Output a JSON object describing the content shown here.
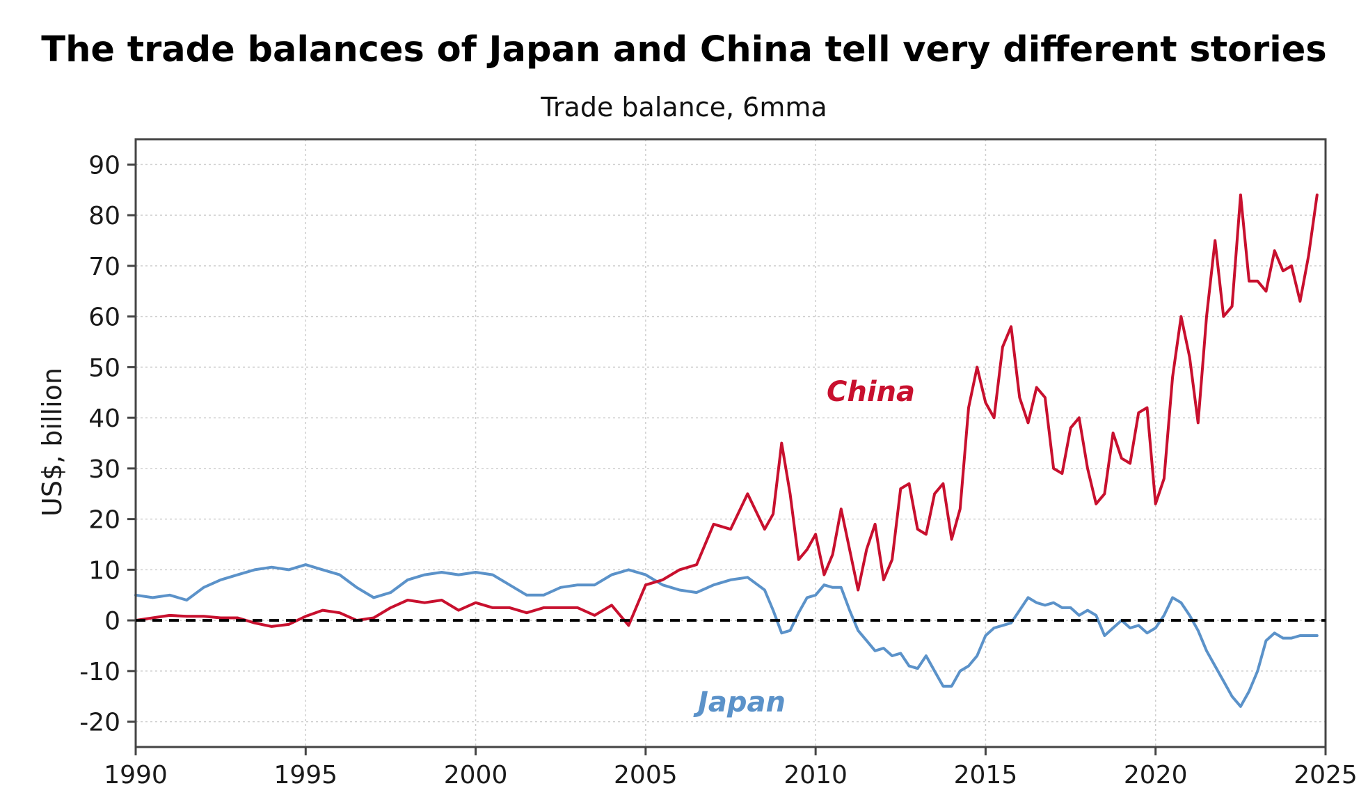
{
  "chart_data": {
    "type": "line",
    "title": "The trade balances of Japan and China tell very different stories",
    "subtitle": "Trade balance, 6mma",
    "xlabel": "",
    "ylabel": "US$, billion",
    "xlim": [
      1990,
      2025
    ],
    "ylim": [
      -25,
      95
    ],
    "xticks": [
      1990,
      1995,
      2000,
      2005,
      2010,
      2015,
      2020,
      2025
    ],
    "yticks": [
      -20,
      -10,
      0,
      10,
      20,
      30,
      40,
      50,
      60,
      70,
      80,
      90
    ],
    "grid": true,
    "zero_line": "dashed",
    "series": [
      {
        "name": "China",
        "color": "#c8102e",
        "x": [
          1990.0,
          1990.5,
          1991.0,
          1991.5,
          1992.0,
          1992.5,
          1993.0,
          1993.5,
          1994.0,
          1994.5,
          1995.0,
          1995.5,
          1996.0,
          1996.5,
          1997.0,
          1997.5,
          1998.0,
          1998.5,
          1999.0,
          1999.5,
          2000.0,
          2000.5,
          2001.0,
          2001.5,
          2002.0,
          2002.5,
          2003.0,
          2003.5,
          2004.0,
          2004.5,
          2005.0,
          2005.5,
          2006.0,
          2006.5,
          2007.0,
          2007.5,
          2008.0,
          2008.5,
          2008.75,
          2009.0,
          2009.25,
          2009.5,
          2009.75,
          2010.0,
          2010.25,
          2010.5,
          2010.75,
          2011.0,
          2011.25,
          2011.5,
          2011.75,
          2012.0,
          2012.25,
          2012.5,
          2012.75,
          2013.0,
          2013.25,
          2013.5,
          2013.75,
          2014.0,
          2014.25,
          2014.5,
          2014.75,
          2015.0,
          2015.25,
          2015.5,
          2015.75,
          2016.0,
          2016.25,
          2016.5,
          2016.75,
          2017.0,
          2017.25,
          2017.5,
          2017.75,
          2018.0,
          2018.25,
          2018.5,
          2018.75,
          2019.0,
          2019.25,
          2019.5,
          2019.75,
          2020.0,
          2020.25,
          2020.5,
          2020.75,
          2021.0,
          2021.25,
          2021.5,
          2021.75,
          2022.0,
          2022.25,
          2022.5,
          2022.75,
          2023.0,
          2023.25,
          2023.5,
          2023.75,
          2024.0,
          2024.25,
          2024.5,
          2024.75
        ],
        "values": [
          0,
          0.5,
          1,
          0.8,
          0.8,
          0.5,
          0.5,
          -0.5,
          -1.2,
          -0.8,
          0.8,
          2,
          1.5,
          0,
          0.5,
          2.5,
          4,
          3.5,
          4,
          2,
          3.5,
          2.5,
          2.5,
          1.5,
          2.5,
          2.5,
          2.5,
          1,
          3,
          -1,
          7,
          8,
          10,
          11,
          19,
          18,
          25,
          18,
          21,
          35,
          25,
          12,
          14,
          17,
          9,
          13,
          22,
          14,
          6,
          14,
          19,
          8,
          12,
          26,
          27,
          18,
          17,
          25,
          27,
          16,
          22,
          42,
          50,
          43,
          40,
          54,
          58,
          44,
          39,
          46,
          44,
          30,
          29,
          38,
          40,
          30,
          23,
          25,
          37,
          32,
          31,
          41,
          42,
          23,
          28,
          48,
          60,
          52,
          39,
          60,
          75,
          60,
          62,
          84,
          67,
          67,
          65,
          73,
          69,
          70,
          63,
          72,
          84
        ]
      },
      {
        "name": "Japan",
        "color": "#5b92c9",
        "x": [
          1990.0,
          1990.5,
          1991.0,
          1991.5,
          1992.0,
          1992.5,
          1993.0,
          1993.5,
          1994.0,
          1994.5,
          1995.0,
          1995.5,
          1996.0,
          1996.5,
          1997.0,
          1997.5,
          1998.0,
          1998.5,
          1999.0,
          1999.5,
          2000.0,
          2000.5,
          2001.0,
          2001.5,
          2002.0,
          2002.5,
          2003.0,
          2003.5,
          2004.0,
          2004.5,
          2005.0,
          2005.5,
          2006.0,
          2006.5,
          2007.0,
          2007.5,
          2008.0,
          2008.5,
          2008.75,
          2009.0,
          2009.25,
          2009.5,
          2009.75,
          2010.0,
          2010.25,
          2010.5,
          2010.75,
          2011.0,
          2011.25,
          2011.5,
          2011.75,
          2012.0,
          2012.25,
          2012.5,
          2012.75,
          2013.0,
          2013.25,
          2013.5,
          2013.75,
          2014.0,
          2014.25,
          2014.5,
          2014.75,
          2015.0,
          2015.25,
          2015.5,
          2015.75,
          2016.0,
          2016.25,
          2016.5,
          2016.75,
          2017.0,
          2017.25,
          2017.5,
          2017.75,
          2018.0,
          2018.25,
          2018.5,
          2018.75,
          2019.0,
          2019.25,
          2019.5,
          2019.75,
          2020.0,
          2020.25,
          2020.5,
          2020.75,
          2021.0,
          2021.25,
          2021.5,
          2021.75,
          2022.0,
          2022.25,
          2022.5,
          2022.75,
          2023.0,
          2023.25,
          2023.5,
          2023.75,
          2024.0,
          2024.25,
          2024.5,
          2024.75
        ],
        "values": [
          5,
          4.5,
          5,
          4,
          6.5,
          8,
          9,
          10,
          10.5,
          10,
          11,
          10,
          9,
          6.5,
          4.5,
          5.5,
          8,
          9,
          9.5,
          9,
          9.5,
          9,
          7,
          5,
          5,
          6.5,
          7,
          7,
          9,
          10,
          9,
          7,
          6,
          5.5,
          7,
          8,
          8.5,
          6,
          2,
          -2.5,
          -2,
          1.5,
          4.5,
          5,
          7,
          6.5,
          6.5,
          2,
          -2,
          -4,
          -6,
          -5.5,
          -7,
          -6.5,
          -9,
          -9.5,
          -7,
          -10,
          -13,
          -13,
          -10,
          -9,
          -7,
          -3,
          -1.5,
          -1,
          -0.5,
          2,
          4.5,
          3.5,
          3,
          3.5,
          2.5,
          2.5,
          1,
          2,
          1,
          -3,
          -1.5,
          0,
          -1.5,
          -1,
          -2.5,
          -1.5,
          1,
          4.5,
          3.5,
          1,
          -2,
          -6,
          -9,
          -12,
          -15,
          -17,
          -14,
          -10,
          -4,
          -2.5,
          -3.5,
          -3.5,
          -3,
          -3,
          -3
        ]
      }
    ]
  }
}
